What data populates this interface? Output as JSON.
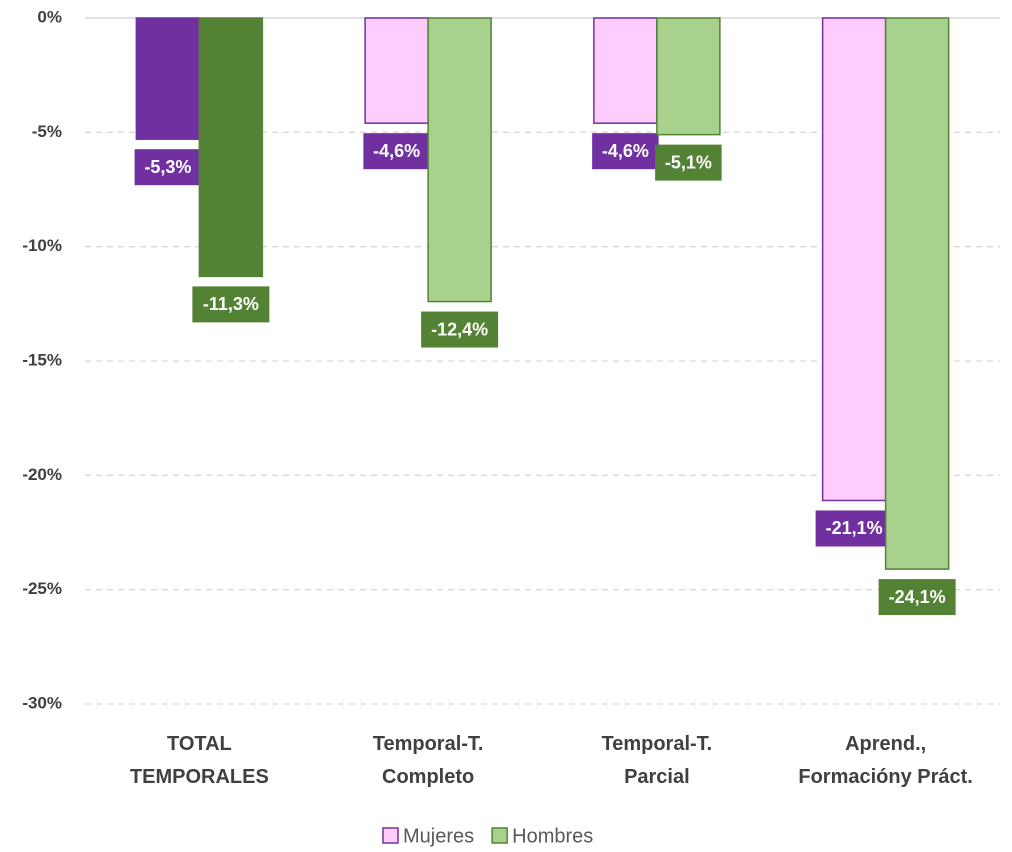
{
  "chart_data": {
    "type": "bar",
    "categories": [
      "TOTAL TEMPORALES",
      "Temporal-T. Completo",
      "Temporal-T. Parcial",
      "Aprend., Formacióny Práct."
    ],
    "series": [
      {
        "name": "Mujeres",
        "color": "#ffccff",
        "border": "#7030a0",
        "label_color": "#7030a0",
        "colors": [
          "#7030a0",
          "#ffccff",
          "#ffccff",
          "#ffccff"
        ],
        "values": [
          -5.3,
          -4.6,
          -4.6,
          -21.1
        ],
        "value_labels": [
          "-5,3%",
          "-4,6%",
          "-4,6%",
          "-21,1%"
        ]
      },
      {
        "name": "Hombres",
        "color": "#a9d18e",
        "border": "#548235",
        "label_color": "#548235",
        "colors": [
          "#548235",
          "#a9d18e",
          "#a9d18e",
          "#a9d18e"
        ],
        "values": [
          -11.3,
          -12.4,
          -5.1,
          -24.1
        ],
        "value_labels": [
          "-11,3%",
          "-12,4%",
          "-5,1%",
          "-24,1%"
        ]
      }
    ],
    "ylim": [
      -30,
      0
    ],
    "yticks": [
      {
        "value": 0,
        "label": "0%"
      },
      {
        "value": -5,
        "label": "-5%"
      },
      {
        "value": -10,
        "label": "-10%"
      },
      {
        "value": -15,
        "label": "-15%"
      },
      {
        "value": -20,
        "label": "-20%"
      },
      {
        "value": -25,
        "label": "-25%"
      },
      {
        "value": -30,
        "label": "-30%"
      }
    ],
    "grid": true
  }
}
